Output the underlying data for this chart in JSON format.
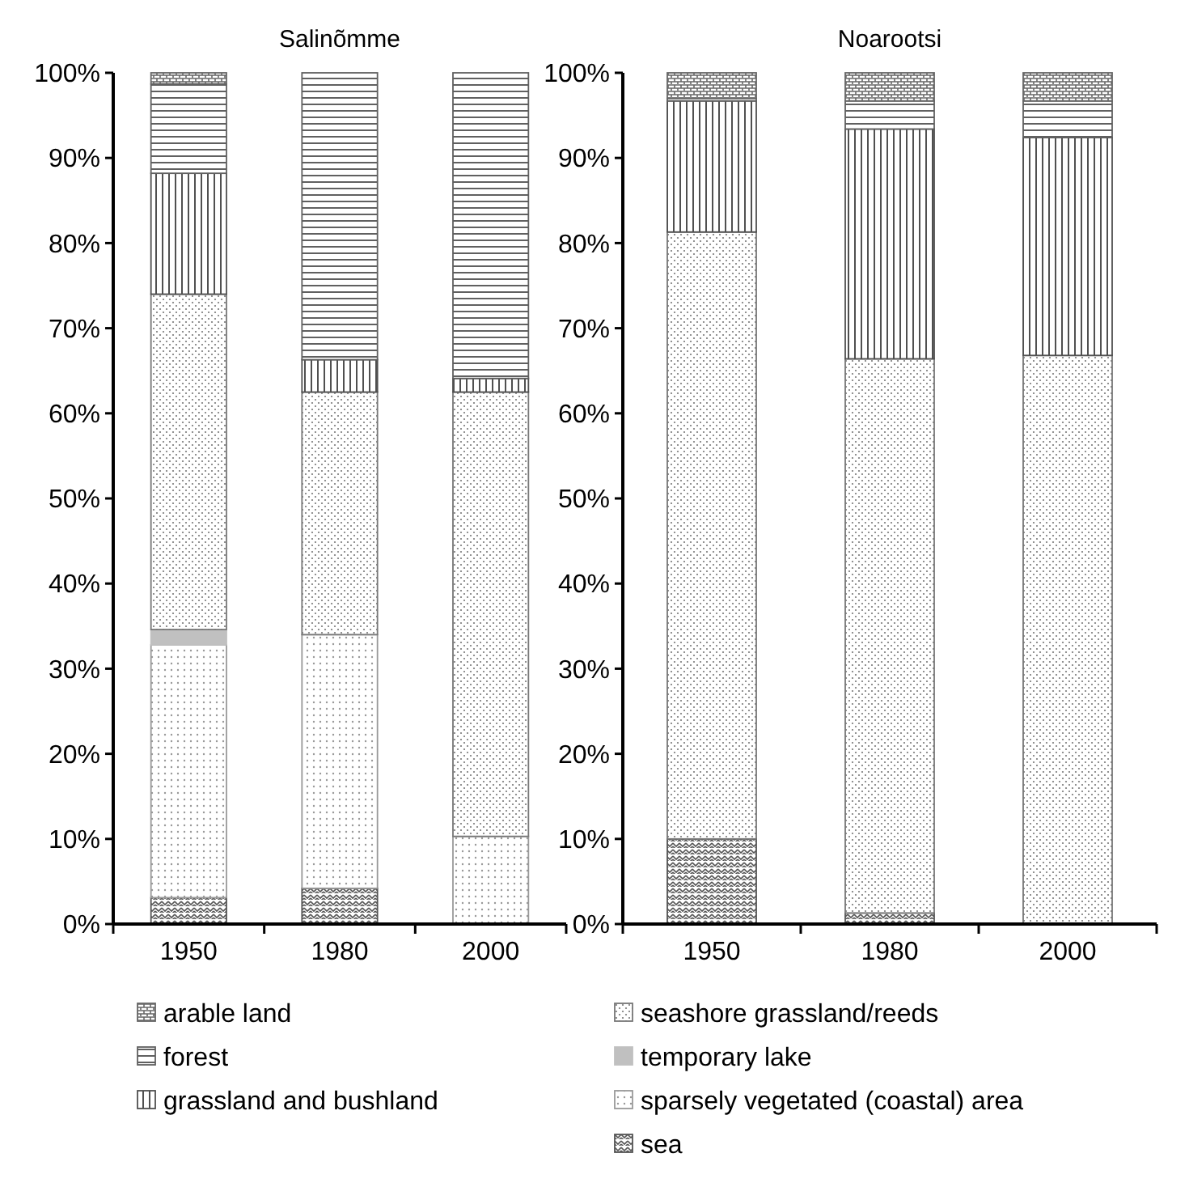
{
  "chart_data": [
    {
      "type": "bar",
      "title": "Salinõmme",
      "stacked": true,
      "legend": "bottom",
      "categories": [
        "1950",
        "1980",
        "2000"
      ],
      "ylim": [
        0,
        100
      ],
      "yticks": [
        {
          "value": 0,
          "label": "0%"
        },
        {
          "value": 10,
          "label": "10%"
        },
        {
          "value": 20,
          "label": "20%"
        },
        {
          "value": 30,
          "label": "30%"
        },
        {
          "value": 40,
          "label": "40%"
        },
        {
          "value": 50,
          "label": "50%"
        },
        {
          "value": 60,
          "label": "60%"
        },
        {
          "value": 70,
          "label": "70%"
        },
        {
          "value": 80,
          "label": "80%"
        },
        {
          "value": 90,
          "label": "90%"
        },
        {
          "value": 100,
          "label": "100%"
        }
      ],
      "series": [
        {
          "name": "sea",
          "color": "#555555",
          "values": [
            3.1,
            4.2,
            0
          ]
        },
        {
          "name": "sparsely vegetated (coastal) area",
          "color": "#999999",
          "values": [
            29.7,
            29.8,
            10.3
          ]
        },
        {
          "name": "temporary lake",
          "color": "#c0c0c0",
          "values": [
            1.8,
            0,
            0
          ]
        },
        {
          "name": "seashore grassland/reeds",
          "color": "#777777",
          "values": [
            39.4,
            28.5,
            52.2
          ]
        },
        {
          "name": "grassland and bushland",
          "color": "#505050",
          "values": [
            14.2,
            3.8,
            1.6
          ]
        },
        {
          "name": "forest",
          "color": "#606060",
          "values": [
            10.5,
            33.7,
            35.9
          ]
        },
        {
          "name": "arable land",
          "color": "#666666",
          "values": [
            1.3,
            0,
            0
          ]
        }
      ]
    },
    {
      "type": "bar",
      "title": "Noarootsi",
      "stacked": true,
      "categories": [
        "1950",
        "1980",
        "2000"
      ],
      "ylim": [
        0,
        100
      ],
      "yticks": [
        {
          "value": 0,
          "label": "0%"
        },
        {
          "value": 10,
          "label": "10%"
        },
        {
          "value": 20,
          "label": "20%"
        },
        {
          "value": 30,
          "label": "30%"
        },
        {
          "value": 40,
          "label": "40%"
        },
        {
          "value": 50,
          "label": "50%"
        },
        {
          "value": 60,
          "label": "60%"
        },
        {
          "value": 70,
          "label": "70%"
        },
        {
          "value": 80,
          "label": "80%"
        },
        {
          "value": 90,
          "label": "90%"
        },
        {
          "value": 100,
          "label": "100%"
        }
      ],
      "series": [
        {
          "color": "#555555",
          "values": [
            10.0,
            1.3,
            0
          ]
        },
        {
          "color": "#999999",
          "values": [
            0,
            0,
            0
          ]
        },
        {
          "color": "#c0c0c0",
          "values": [
            0,
            0,
            0
          ]
        },
        {
          "color": "#777777",
          "values": [
            71.3,
            65.1,
            66.8
          ]
        },
        {
          "color": "#505050",
          "values": [
            15.4,
            27.0,
            25.6
          ]
        },
        {
          "color": "#606060",
          "values": [
            0.3,
            3.3,
            4.3
          ]
        },
        {
          "color": "#666666",
          "values": [
            3.0,
            3.3,
            3.3
          ]
        }
      ]
    }
  ]
}
